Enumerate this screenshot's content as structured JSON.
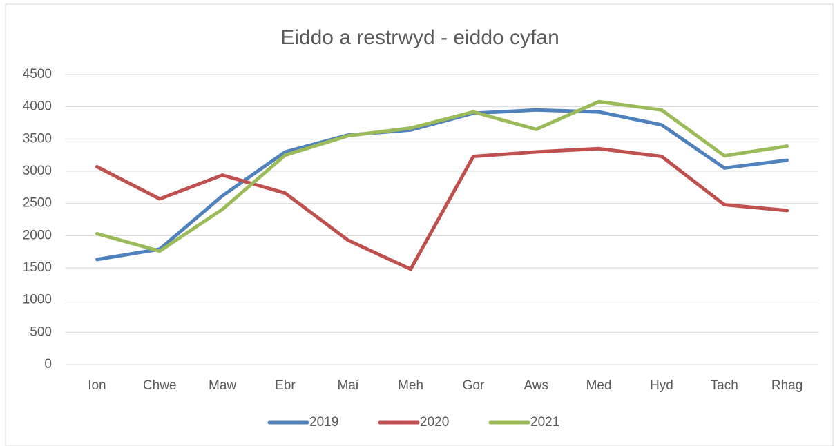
{
  "chart_data": {
    "type": "line",
    "title": "Eiddo a restrwyd - eiddo cyfan",
    "categories": [
      "Ion",
      "Chwe",
      "Maw",
      "Ebr",
      "Mai",
      "Meh",
      "Gor",
      "Aws",
      "Med",
      "Hyd",
      "Tach",
      "Rhag"
    ],
    "series": [
      {
        "name": "2019",
        "color": "#4f81bd",
        "values": [
          1630,
          1790,
          2620,
          3300,
          3560,
          3640,
          3900,
          3950,
          3920,
          3720,
          3050,
          3170
        ]
      },
      {
        "name": "2020",
        "color": "#c0504d",
        "values": [
          3070,
          2570,
          2940,
          2660,
          1930,
          1480,
          3230,
          3300,
          3350,
          3230,
          2480,
          2390
        ]
      },
      {
        "name": "2021",
        "color": "#9bbb59",
        "values": [
          2030,
          1760,
          2410,
          3250,
          3550,
          3670,
          3920,
          3650,
          4080,
          3950,
          3240,
          3390
        ]
      }
    ],
    "ylim": [
      0,
      4500
    ],
    "yticks": [
      0,
      500,
      1000,
      1500,
      2000,
      2500,
      3000,
      3500,
      4000,
      4500
    ],
    "grid": true,
    "legend": "bottom"
  }
}
